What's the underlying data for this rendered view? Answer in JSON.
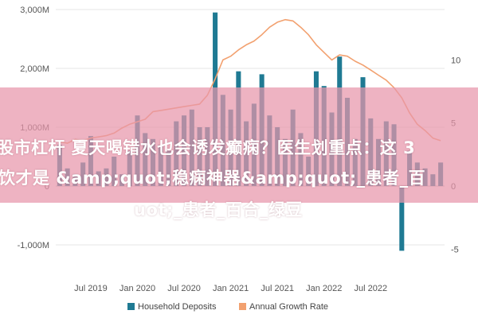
{
  "chart_data": {
    "type": "bar",
    "title": "",
    "xlabel": "",
    "ylabel_left": "",
    "ylabel_right": "",
    "ylim_left": [
      -1500,
      3000
    ],
    "ylim_right": [
      -7,
      14
    ],
    "left_ticks": [
      {
        "value": 3000,
        "label": "3,000M"
      },
      {
        "value": 2000,
        "label": "2,000M"
      },
      {
        "value": 1000,
        "label": "1,000M"
      },
      {
        "value": 0,
        "label": "0"
      },
      {
        "value": -1000,
        "label": "-1,000M"
      }
    ],
    "right_ticks": [
      {
        "value": 10,
        "label": "10"
      },
      {
        "value": 5,
        "label": "5"
      },
      {
        "value": 0,
        "label": "0"
      },
      {
        "value": -5,
        "label": "-5"
      }
    ],
    "x_ticks": [
      {
        "index": 4,
        "label": "Jul 2019"
      },
      {
        "index": 10,
        "label": "Jan 2020"
      },
      {
        "index": 16,
        "label": "Jul 2020"
      },
      {
        "index": 22,
        "label": "Jan 2021"
      },
      {
        "index": 28,
        "label": "Jul 2021"
      },
      {
        "index": 34,
        "label": "Jan 2022"
      },
      {
        "index": 40,
        "label": "Jul 2022"
      }
    ],
    "series": [
      {
        "name": "Household Deposits",
        "type": "bar",
        "color": "#1f7a93",
        "values": [
          700,
          300,
          200,
          400,
          850,
          250,
          300,
          500,
          200,
          600,
          1200,
          900,
          800,
          700,
          600,
          1100,
          1200,
          1300,
          1000,
          1000,
          2950,
          1550,
          1300,
          1950,
          1100,
          1400,
          1900,
          1200,
          1000,
          800,
          1300,
          900,
          500,
          1950,
          1700,
          1250,
          2200,
          1500,
          800,
          1850,
          1150,
          800,
          1100,
          1050,
          -1100,
          600,
          400,
          300,
          200,
          400
        ]
      },
      {
        "name": "Annual Growth Rate",
        "type": "line",
        "color": "#f2a170",
        "values": [
          3.5,
          3.4,
          3.7,
          3.6,
          3.8,
          3.9,
          4.0,
          4.2,
          4.6,
          4.9,
          5.1,
          5.3,
          5.9,
          6.0,
          6.1,
          6.2,
          6.3,
          6.4,
          6.5,
          7.2,
          8.5,
          10.0,
          10.3,
          10.8,
          11.2,
          11.5,
          12.0,
          12.6,
          13.0,
          13.2,
          13.1,
          12.6,
          12.0,
          11.2,
          10.6,
          10.0,
          10.4,
          10.3,
          9.9,
          9.6,
          9.2,
          8.8,
          8.4,
          7.8,
          7.0,
          5.8,
          4.9,
          4.4,
          3.8,
          3.6
        ]
      }
    ],
    "legend": {
      "placement": "bottom-center"
    }
  },
  "overlay": {
    "line1": "股市杠杆 夏天喝错水也会诱发癫痫？医生划重点：这 3",
    "line2": "饮才是 &amp;quot;稳痫神器&amp;quot;_患者_百",
    "line3": "uot;_患者_百合_绿豆"
  }
}
